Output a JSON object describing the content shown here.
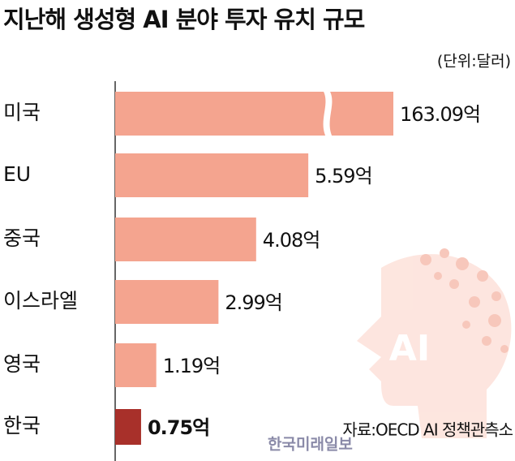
{
  "chart_data": {
    "type": "bar",
    "orientation": "horizontal",
    "title": "지난해 생성형 AI 분야 투자 유치 규모",
    "unit": "(단위:달러)",
    "source": "자료:OECD AI 정책관측소",
    "watermark": "한국미래일보",
    "illustration_text": "AI",
    "categories": [
      "미국",
      "EU",
      "중국",
      "이스라엘",
      "영국",
      "한국"
    ],
    "values": [
      163.09,
      5.59,
      4.08,
      2.99,
      1.19,
      0.75
    ],
    "value_labels": [
      "163.09억",
      "5.59억",
      "4.08억",
      "2.99억",
      "1.19억",
      "0.75억"
    ],
    "colors": [
      "#f4a48f",
      "#f4a48f",
      "#f4a48f",
      "#f4a48f",
      "#f4a48f",
      "#a8302a"
    ]
  }
}
